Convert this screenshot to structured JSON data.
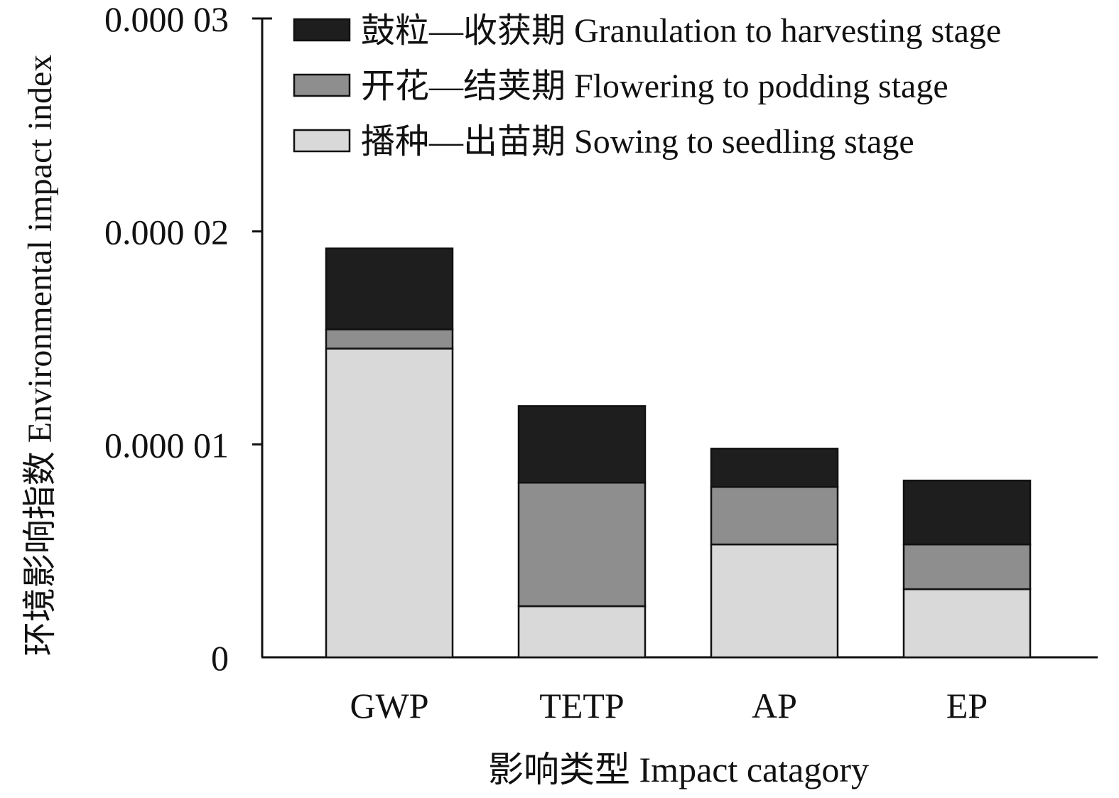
{
  "chart_data": {
    "type": "bar",
    "stacked": true,
    "categories": [
      "GWP",
      "TETP",
      "AP",
      "EP"
    ],
    "series": [
      {
        "name": "播种—出苗期 Sowing to seedling stage",
        "color": "#d9d9d9",
        "values": [
          1.45e-05,
          2.4e-06,
          5.3e-06,
          3.2e-06
        ]
      },
      {
        "name": "开花—结荚期 Flowering to podding stage",
        "color": "#8e8e8e",
        "values": [
          9e-07,
          5.8e-06,
          2.7e-06,
          2.1e-06
        ]
      },
      {
        "name": "鼓粒—收获期 Granulation to harvesting stage",
        "color": "#1e1e1e",
        "values": [
          3.8e-06,
          3.6e-06,
          1.8e-06,
          3e-06
        ]
      }
    ],
    "legend_order": [
      2,
      1,
      0
    ],
    "ylim": [
      0,
      3e-05
    ],
    "yticks": [
      0,
      1e-05,
      2e-05,
      3e-05
    ],
    "ytick_labels": [
      "0",
      "0.000 01",
      "0.000 02",
      "0.000 03"
    ],
    "xlabel": "影响类型 Impact catagory",
    "ylabel": "环境影响指数 Environmental impact index",
    "legend_position": "top-right",
    "grid": false
  }
}
